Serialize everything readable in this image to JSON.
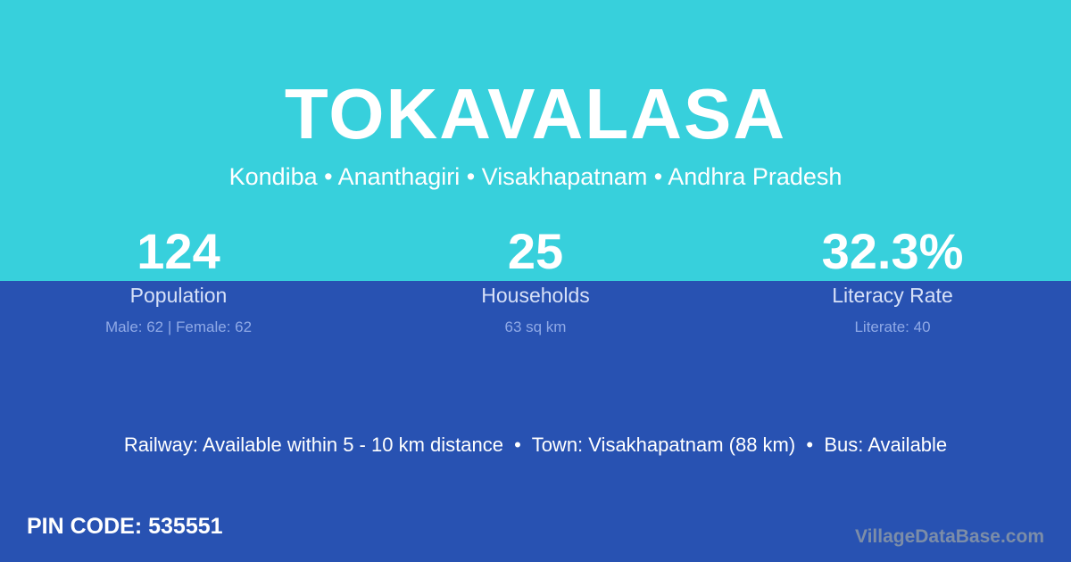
{
  "colors": {
    "top_band": "#37d0dc",
    "bottom_band": "#2852b2"
  },
  "title": "TOKAVALASA",
  "subtitle": "Kondiba • Ananthagiri • Visakhapatnam • Andhra Pradesh",
  "stats": [
    {
      "value": "124",
      "label": "Population",
      "sub": "Male: 62 | Female: 62"
    },
    {
      "value": "25",
      "label": "Households",
      "sub": "63 sq km"
    },
    {
      "value": "32.3%",
      "label": "Literacy Rate",
      "sub": "Literate: 40"
    }
  ],
  "info": "Railway: Available within 5 - 10 km distance  •  Town: Visakhapatnam (88 km)  •  Bus: Available",
  "pin": "PIN CODE: 535551",
  "brand": "VillageDataBase.com"
}
